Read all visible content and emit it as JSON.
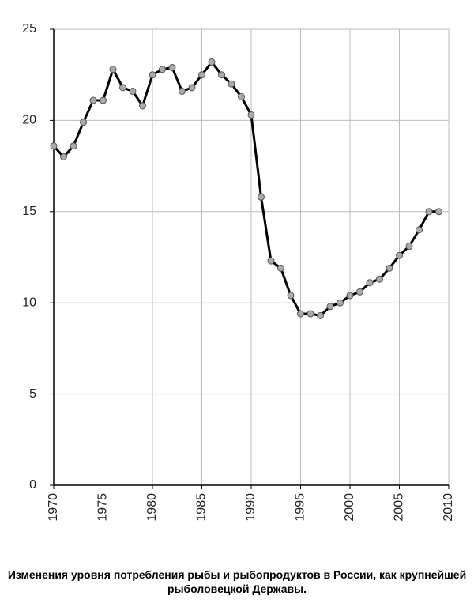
{
  "chart_data": {
    "type": "line",
    "title": "Изменения уровня потребления рыбы и рыбопродуктов в России, как крупнейшей рыболовецкой Державы.",
    "x": [
      1970,
      1971,
      1972,
      1973,
      1974,
      1975,
      1976,
      1977,
      1978,
      1979,
      1980,
      1981,
      1982,
      1983,
      1984,
      1985,
      1986,
      1987,
      1988,
      1989,
      1990,
      1991,
      1992,
      1993,
      1994,
      1995,
      1996,
      1997,
      1998,
      1999,
      2000,
      2001,
      2002,
      2003,
      2004,
      2005,
      2006,
      2007,
      2008,
      2009
    ],
    "series": [
      {
        "color": "#000000",
        "values": [
          18.6,
          18.0,
          18.6,
          19.9,
          21.1,
          21.1,
          22.8,
          21.8,
          21.6,
          20.8,
          22.5,
          22.8,
          22.9,
          21.6,
          21.8,
          22.5,
          23.2,
          22.5,
          22.0,
          21.3,
          20.3,
          15.8,
          12.3,
          11.9,
          10.4,
          9.4,
          9.4,
          9.3,
          9.8,
          10.0,
          10.4,
          10.6,
          11.1,
          11.3,
          11.9,
          12.6,
          13.1,
          14.0,
          15.0,
          15.0
        ]
      }
    ],
    "xlim": [
      1970,
      2010
    ],
    "xticks": [
      1970,
      1975,
      1980,
      1985,
      1990,
      1995,
      2000,
      2005,
      2010
    ],
    "ylim": [
      0,
      25
    ],
    "yticks": [
      0,
      5,
      10,
      15,
      20,
      25
    ],
    "grid": true
  }
}
